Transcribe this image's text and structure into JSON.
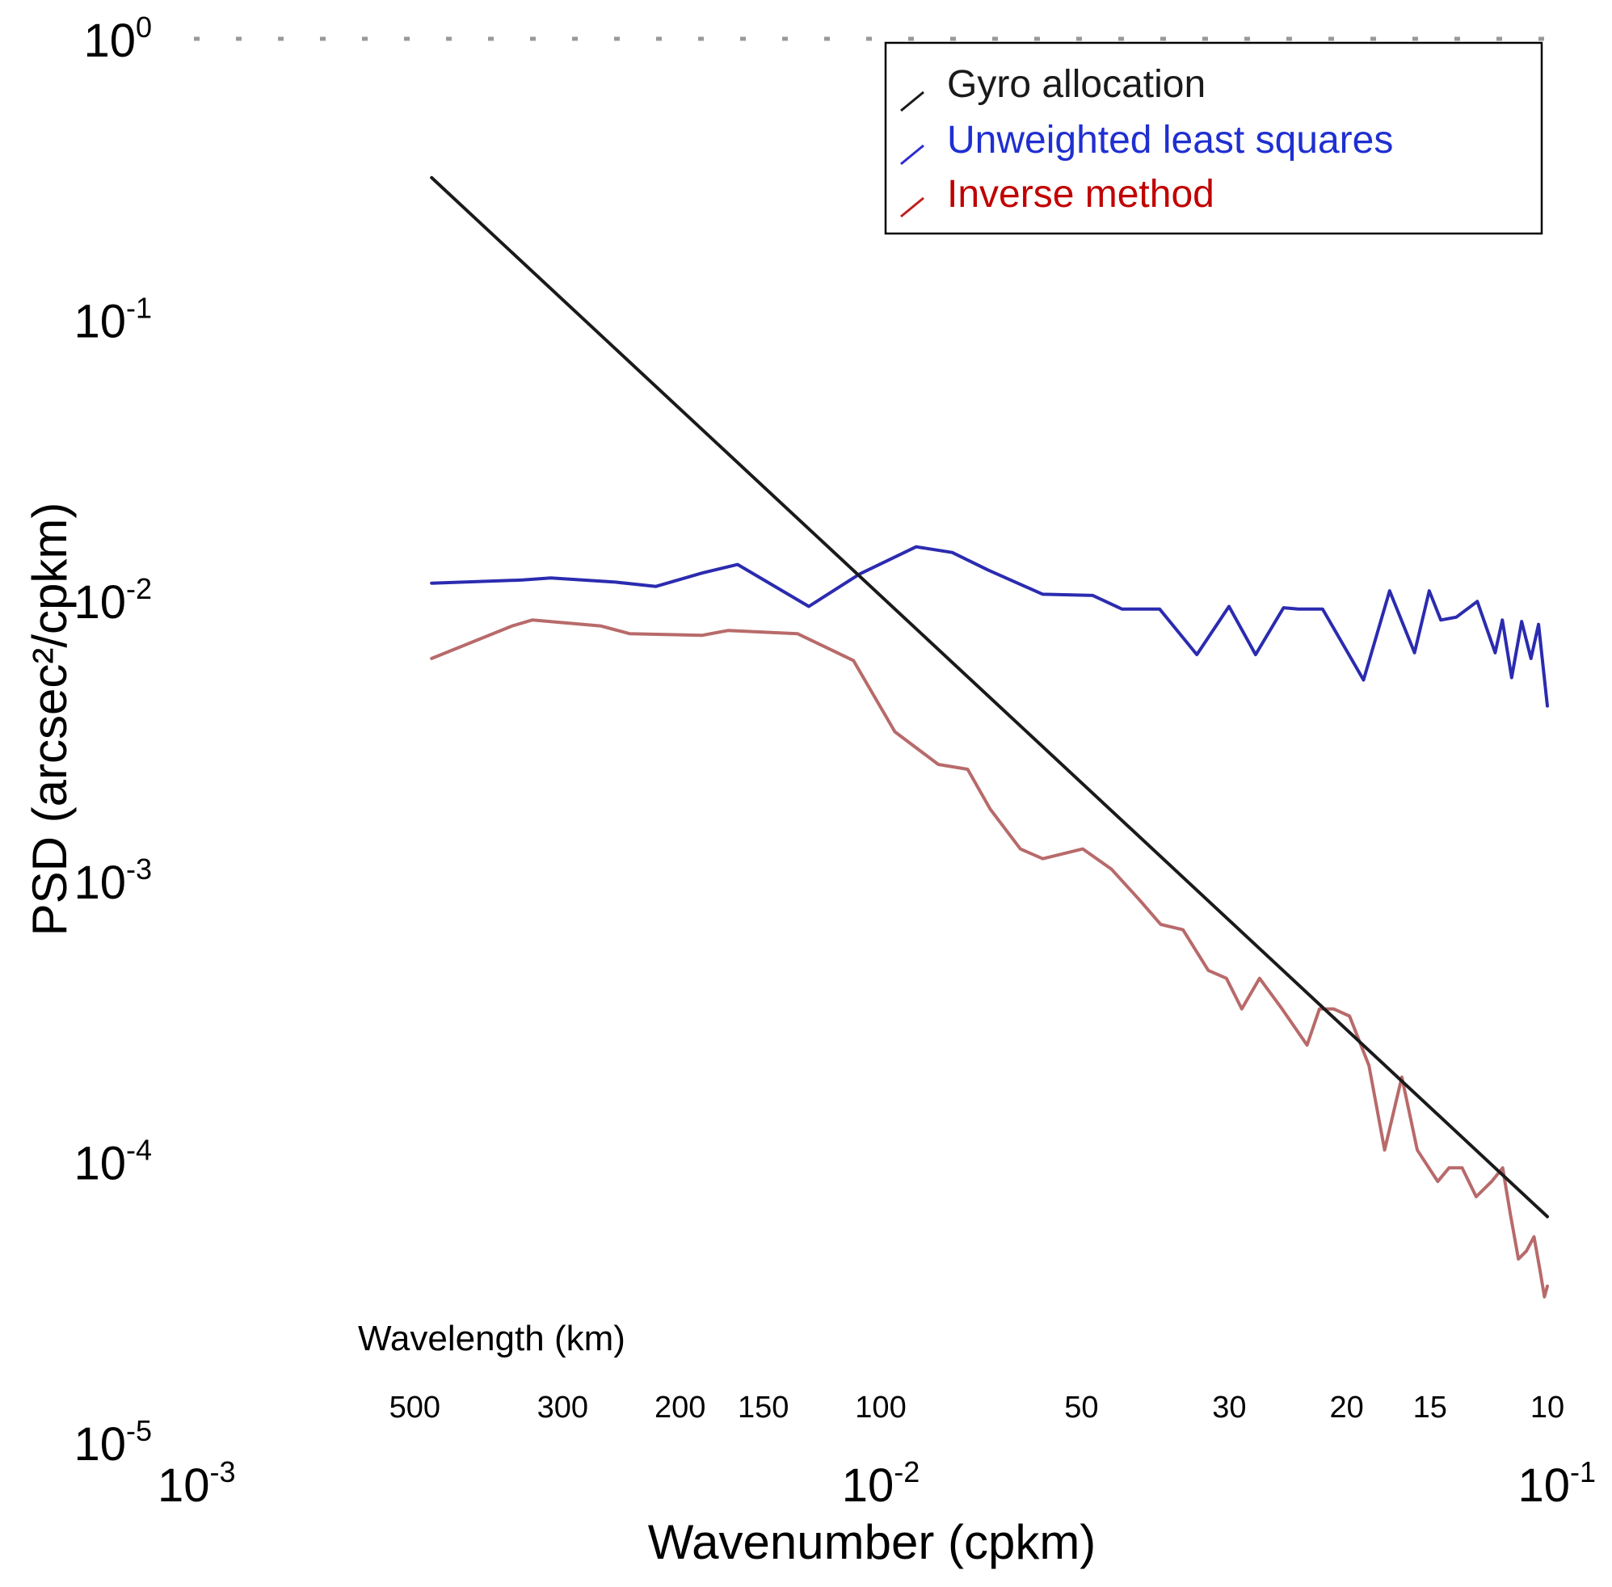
{
  "chart_data": {
    "type": "line",
    "xscale": "log",
    "yscale": "log",
    "xlabel": "Wavenumber (cpkm)",
    "ylabel": "PSD (arcsec²/cpkm)",
    "xlim": [
      0.001,
      0.1
    ],
    "ylim": [
      1e-05,
      1
    ],
    "x_ticks": [
      {
        "value": 0.001,
        "base": "10",
        "exp": "-3"
      },
      {
        "value": 0.01,
        "base": "10",
        "exp": "-2"
      },
      {
        "value": 0.1,
        "base": "10",
        "exp": "-1"
      }
    ],
    "y_ticks": [
      {
        "value": 1,
        "base": "10",
        "exp": "0"
      },
      {
        "value": 0.1,
        "base": "10",
        "exp": "-1"
      },
      {
        "value": 0.01,
        "base": "10",
        "exp": "-2"
      },
      {
        "value": 0.001,
        "base": "10",
        "exp": "-3"
      },
      {
        "value": 0.0001,
        "base": "10",
        "exp": "-4"
      },
      {
        "value": 1e-05,
        "base": "10",
        "exp": "-5"
      }
    ],
    "secondary_axis": {
      "label": "Wavelength (km)",
      "ticks": [
        "500",
        "300",
        "200",
        "150",
        "100",
        "50",
        "30",
        "20",
        "15",
        "10"
      ]
    },
    "legend": {
      "position": "top-right",
      "entries": [
        "Gyro allocation",
        "Unweighted least squares",
        "Inverse method"
      ]
    },
    "series": [
      {
        "name": "Gyro allocation",
        "color": "#1a1a1a",
        "x": [
          0.00212,
          0.1
        ],
        "y": [
          0.32,
          6.37e-05
        ]
      },
      {
        "name": "Unweighted least squares",
        "color": "#2b2bb0",
        "x": [
          0.00212,
          0.0029,
          0.0032,
          0.004,
          0.0046,
          0.0054,
          0.0061,
          0.0078,
          0.0093,
          0.0113,
          0.0128,
          0.0145,
          0.0175,
          0.0208,
          0.023,
          0.0262,
          0.0298,
          0.0333,
          0.0365,
          0.0402,
          0.0423,
          0.046,
          0.053,
          0.058,
          0.0632,
          0.0665,
          0.0692,
          0.073,
          0.0785,
          0.0835,
          0.0856,
          0.0884,
          0.0915,
          0.0945,
          0.097,
          0.1
        ],
        "y": [
          0.0115,
          0.0118,
          0.012,
          0.0116,
          0.0112,
          0.0125,
          0.0134,
          0.0095,
          0.0124,
          0.0155,
          0.0148,
          0.0128,
          0.0105,
          0.0104,
          0.0093,
          0.0093,
          0.0064,
          0.0095,
          0.0064,
          0.0094,
          0.0093,
          0.0093,
          0.0052,
          0.0108,
          0.0065,
          0.0108,
          0.0085,
          0.0087,
          0.0099,
          0.0065,
          0.0085,
          0.0053,
          0.0084,
          0.0062,
          0.0082,
          0.0042
        ]
      },
      {
        "name": "Inverse method",
        "color": "#b86a6a",
        "x": [
          0.00212,
          0.0028,
          0.003,
          0.0038,
          0.0042,
          0.0054,
          0.0059,
          0.0075,
          0.0091,
          0.0105,
          0.0122,
          0.0135,
          0.0146,
          0.0162,
          0.0175,
          0.0201,
          0.0222,
          0.0245,
          0.0263,
          0.0284,
          0.031,
          0.033,
          0.0348,
          0.037,
          0.04,
          0.0436,
          0.0455,
          0.0478,
          0.0505,
          0.054,
          0.057,
          0.0605,
          0.0638,
          0.0685,
          0.0712,
          0.0745,
          0.0782,
          0.0825,
          0.0857,
          0.088,
          0.0905,
          0.093,
          0.0955,
          0.0975,
          0.099,
          0.1
        ],
        "y": [
          0.0062,
          0.0081,
          0.0085,
          0.0081,
          0.0076,
          0.0075,
          0.0078,
          0.0076,
          0.0061,
          0.0034,
          0.0026,
          0.0025,
          0.0018,
          0.0013,
          0.0012,
          0.0013,
          0.0011,
          0.00085,
          0.0007,
          0.00067,
          0.00048,
          0.00045,
          0.00035,
          0.00045,
          0.00035,
          0.00026,
          0.00035,
          0.00035,
          0.00033,
          0.00022,
          0.00011,
          0.0002,
          0.00011,
          8.5e-05,
          9.5e-05,
          9.5e-05,
          7.5e-05,
          8.5e-05,
          9.5e-05,
          6.5e-05,
          4.5e-05,
          4.8e-05,
          5.4e-05,
          4.1e-05,
          3.3e-05,
          3.6e-05
        ]
      }
    ]
  }
}
